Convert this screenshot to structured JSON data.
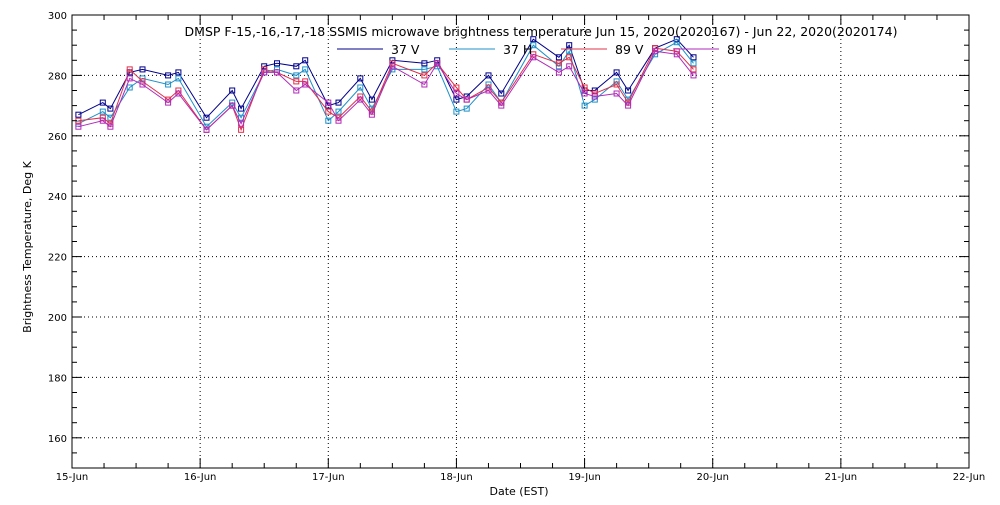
{
  "chart_data": {
    "type": "line",
    "title": "DMSP F-15,-16,-17,-18 SSMIS microwave brightness temperature Jun 15, 2020(2020167) - Jun 22, 2020(2020174)",
    "xlabel": "Date (EST)",
    "ylabel": "Brightness Temperature, Deg K",
    "xlim": [
      0,
      7
    ],
    "ylim": [
      150,
      300
    ],
    "x_tick_values": [
      0,
      1,
      2,
      3,
      4,
      5,
      6,
      7
    ],
    "x_tick_labels": [
      "15-Jun",
      "16-Jun",
      "17-Jun",
      "18-Jun",
      "19-Jun",
      "20-Jun",
      "21-Jun",
      "22-Jun"
    ],
    "y_ticks": [
      160,
      180,
      200,
      220,
      240,
      260,
      280,
      300
    ],
    "grid": true,
    "legend_position": "top-center",
    "marker": "square",
    "x": [
      0.05,
      0.24,
      0.3,
      0.45,
      0.55,
      0.75,
      0.83,
      1.05,
      1.25,
      1.32,
      1.5,
      1.6,
      1.75,
      1.82,
      2.0,
      2.08,
      2.25,
      2.34,
      2.5,
      2.75,
      2.85,
      3.0,
      3.08,
      3.25,
      3.35,
      3.6,
      3.8,
      3.88,
      4.0,
      4.08,
      4.25,
      4.34,
      4.55,
      4.72,
      4.85
    ],
    "series": [
      {
        "name": "37 V",
        "color": "#00008B",
        "values": [
          267,
          271,
          269,
          281,
          282,
          280,
          281,
          266,
          275,
          269,
          283,
          284,
          283,
          285,
          270,
          271,
          279,
          272,
          285,
          284,
          285,
          272,
          273,
          280,
          274,
          292,
          286,
          290,
          275,
          275,
          281,
          275,
          289,
          292,
          286
        ]
      },
      {
        "name": "37 H",
        "color": "#1E90C8",
        "values": [
          264,
          268,
          266,
          276,
          279,
          277,
          279,
          263,
          271,
          266,
          281,
          282,
          280,
          282,
          265,
          268,
          276,
          269,
          282,
          282,
          283,
          268,
          269,
          277,
          271,
          290,
          283,
          288,
          270,
          272,
          278,
          272,
          287,
          291,
          284
        ]
      },
      {
        "name": "89 V",
        "color": "#E0304A",
        "values": [
          265,
          266,
          264,
          282,
          278,
          272,
          275,
          262,
          270,
          262,
          282,
          281,
          278,
          278,
          268,
          266,
          273,
          268,
          284,
          280,
          284,
          276,
          272,
          276,
          271,
          287,
          284,
          286,
          276,
          274,
          277,
          271,
          289,
          288,
          282
        ]
      },
      {
        "name": "89 H",
        "color": "#B02AB8",
        "values": [
          263,
          265,
          263,
          279,
          277,
          271,
          274,
          262,
          270,
          264,
          281,
          281,
          275,
          277,
          271,
          265,
          272,
          267,
          283,
          277,
          284,
          274,
          272,
          275,
          270,
          286,
          281,
          283,
          274,
          273,
          274,
          270,
          288,
          287,
          280
        ]
      }
    ]
  }
}
